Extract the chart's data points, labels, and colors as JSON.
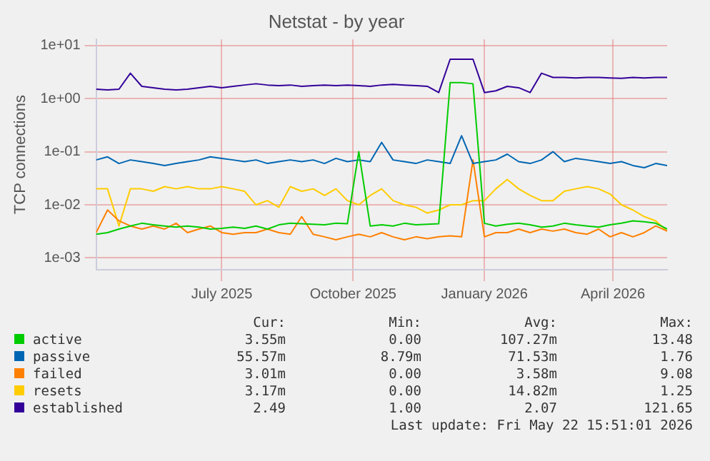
{
  "chart_data": {
    "type": "line",
    "title": "Netstat - by year",
    "ylabel": "TCP connections",
    "x": [
      "2025-04-04",
      "2025-04-12",
      "2025-04-20",
      "2025-04-28",
      "2025-05-06",
      "2025-05-14",
      "2025-05-22",
      "2025-05-30",
      "2025-06-07",
      "2025-06-15",
      "2025-06-23",
      "2025-07-01",
      "2025-07-09",
      "2025-07-17",
      "2025-07-25",
      "2025-08-02",
      "2025-08-10",
      "2025-08-18",
      "2025-08-26",
      "2025-09-03",
      "2025-09-11",
      "2025-09-19",
      "2025-09-27",
      "2025-10-05",
      "2025-10-13",
      "2025-10-21",
      "2025-10-29",
      "2025-11-06",
      "2025-11-14",
      "2025-11-22",
      "2025-11-30",
      "2025-12-08",
      "2025-12-16",
      "2025-12-24",
      "2026-01-01",
      "2026-01-09",
      "2026-01-17",
      "2026-01-25",
      "2026-02-02",
      "2026-02-10",
      "2026-02-18",
      "2026-02-26",
      "2026-03-06",
      "2026-03-14",
      "2026-03-22",
      "2026-03-30",
      "2026-04-07",
      "2026-04-15",
      "2026-04-23",
      "2026-05-01",
      "2026-05-09"
    ],
    "series": [
      {
        "name": "active",
        "color": "#00cc00",
        "values": [
          0.0028,
          0.003,
          0.0035,
          0.004,
          0.0045,
          0.0042,
          0.004,
          0.0038,
          0.004,
          0.0038,
          0.0035,
          0.0036,
          0.0038,
          0.0036,
          0.004,
          0.0035,
          0.0042,
          0.0045,
          0.0044,
          0.0043,
          0.0042,
          0.0045,
          0.0044,
          0.1,
          0.004,
          0.0042,
          0.004,
          0.0045,
          0.0042,
          0.0043,
          0.0044,
          2.0,
          2.0,
          1.9,
          0.0045,
          0.004,
          0.0043,
          0.0045,
          0.0042,
          0.0038,
          0.004,
          0.0045,
          0.0042,
          0.004,
          0.0038,
          0.0042,
          0.0045,
          0.005,
          0.0048,
          0.0045,
          0.0035
        ]
      },
      {
        "name": "passive",
        "color": "#0066b3",
        "values": [
          0.07,
          0.08,
          0.06,
          0.07,
          0.065,
          0.06,
          0.055,
          0.06,
          0.065,
          0.07,
          0.08,
          0.075,
          0.07,
          0.065,
          0.07,
          0.06,
          0.065,
          0.07,
          0.065,
          0.07,
          0.06,
          0.075,
          0.065,
          0.07,
          0.065,
          0.15,
          0.07,
          0.065,
          0.06,
          0.07,
          0.065,
          0.06,
          0.2,
          0.06,
          0.065,
          0.07,
          0.09,
          0.065,
          0.06,
          0.07,
          0.1,
          0.065,
          0.075,
          0.07,
          0.065,
          0.06,
          0.065,
          0.055,
          0.05,
          0.06,
          0.055
        ]
      },
      {
        "name": "failed",
        "color": "#ff8000",
        "values": [
          0.003,
          0.008,
          0.005,
          0.004,
          0.0035,
          0.004,
          0.0035,
          0.0045,
          0.003,
          0.0035,
          0.004,
          0.003,
          0.0028,
          0.003,
          0.003,
          0.0035,
          0.003,
          0.0028,
          0.006,
          0.0028,
          0.0025,
          0.0022,
          0.0025,
          0.0028,
          0.0025,
          0.003,
          0.0025,
          0.0022,
          0.0025,
          0.0023,
          0.0025,
          0.0026,
          0.0025,
          0.07,
          0.0025,
          0.003,
          0.003,
          0.0035,
          0.003,
          0.0035,
          0.0032,
          0.0035,
          0.003,
          0.0028,
          0.0035,
          0.0025,
          0.003,
          0.0025,
          0.003,
          0.004,
          0.0032
        ]
      },
      {
        "name": "resets",
        "color": "#ffcc00",
        "values": [
          0.02,
          0.02,
          0.004,
          0.02,
          0.02,
          0.018,
          0.022,
          0.02,
          0.022,
          0.02,
          0.02,
          0.022,
          0.02,
          0.018,
          0.01,
          0.012,
          0.009,
          0.022,
          0.018,
          0.02,
          0.015,
          0.02,
          0.012,
          0.01,
          0.015,
          0.02,
          0.012,
          0.01,
          0.009,
          0.007,
          0.008,
          0.01,
          0.01,
          0.012,
          0.012,
          0.02,
          0.03,
          0.02,
          0.015,
          0.012,
          0.012,
          0.018,
          0.02,
          0.022,
          0.02,
          0.016,
          0.01,
          0.008,
          0.006,
          0.005,
          0.0032
        ]
      },
      {
        "name": "established",
        "color": "#330099",
        "values": [
          1.5,
          1.45,
          1.5,
          3.0,
          1.7,
          1.6,
          1.5,
          1.45,
          1.5,
          1.6,
          1.7,
          1.6,
          1.7,
          1.8,
          1.9,
          1.8,
          1.75,
          1.8,
          1.7,
          1.75,
          1.8,
          1.75,
          1.8,
          1.75,
          1.7,
          1.8,
          1.85,
          1.8,
          1.75,
          1.7,
          1.3,
          5.5,
          5.5,
          5.5,
          1.3,
          1.4,
          1.7,
          1.6,
          1.3,
          3.0,
          2.5,
          2.5,
          2.45,
          2.5,
          2.5,
          2.45,
          2.4,
          2.5,
          2.45,
          2.5,
          2.5
        ]
      }
    ],
    "log": "y",
    "ylim": [
      0.0006,
      13
    ],
    "yticks": [
      {
        "value": 0.001,
        "label": "1e-03"
      },
      {
        "value": 0.01,
        "label": "1e-02"
      },
      {
        "value": 0.1,
        "label": "1e-01"
      },
      {
        "value": 1,
        "label": "1e+00"
      },
      {
        "value": 10,
        "label": "1e+01"
      }
    ],
    "xlim": [
      "2025-04-04",
      "2026-05-09"
    ],
    "xticks": [
      {
        "value": "2025-07-01",
        "label": "July 2025"
      },
      {
        "value": "2025-10-01",
        "label": "October 2025"
      },
      {
        "value": "2026-01-01",
        "label": "January 2026"
      },
      {
        "value": "2026-04-01",
        "label": "April 2026"
      }
    ],
    "grid": true,
    "marker": "none",
    "line_style": "solid",
    "legend": "bottom",
    "annotations": [
      "Cur:",
      "Min:",
      "Avg:",
      "Max:",
      "3.55m",
      "0.00",
      "107.27m",
      "13.48",
      "55.57m",
      "8.79m",
      "71.53m",
      "1.76",
      "3.01m",
      "0.00",
      "3.58m",
      "9.08",
      "3.17m",
      "0.00",
      "14.82m",
      "1.25",
      "2.49",
      "1.00",
      "2.07",
      "121.65",
      "Last update: Fri May 22 15:51:01 2026"
    ]
  }
}
